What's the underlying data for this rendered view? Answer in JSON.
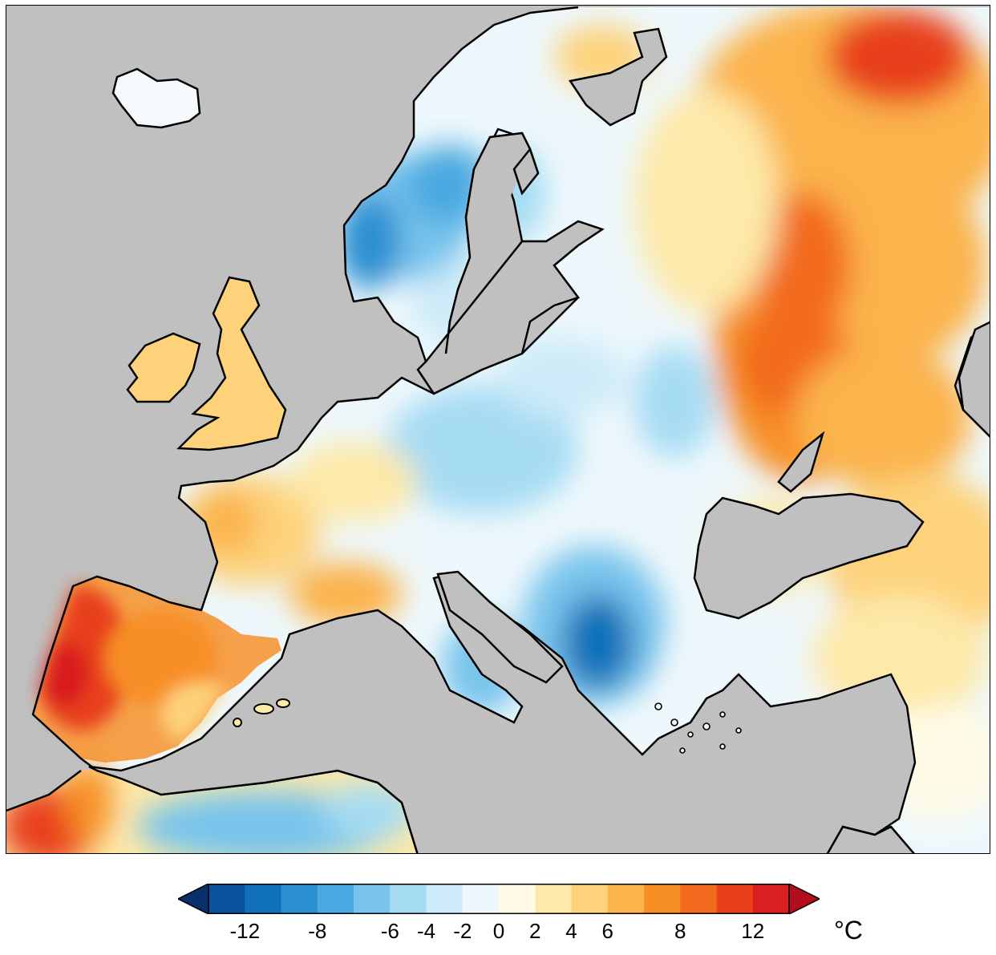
{
  "legend": {
    "unit": "°C",
    "ticks": [
      "-12",
      "-8",
      "-6",
      "-4",
      "-2",
      "0",
      "2",
      "4",
      "6",
      "8",
      "12"
    ],
    "colors": [
      "#08306b",
      "#08519c",
      "#1071b8",
      "#2a8fd0",
      "#4aa9e0",
      "#78c4ec",
      "#a6dcf3",
      "#cdebf8",
      "#eef8fc",
      "#fffbe6",
      "#fde9a8",
      "#fdd27a",
      "#fbb34c",
      "#f78f25",
      "#f26a1d",
      "#e8411a",
      "#d91f1f",
      "#b40e1e"
    ],
    "extend": "both"
  },
  "map": {
    "region": "Europe",
    "land_color": "#c0c0c0",
    "coastline_color": "#000000"
  }
}
